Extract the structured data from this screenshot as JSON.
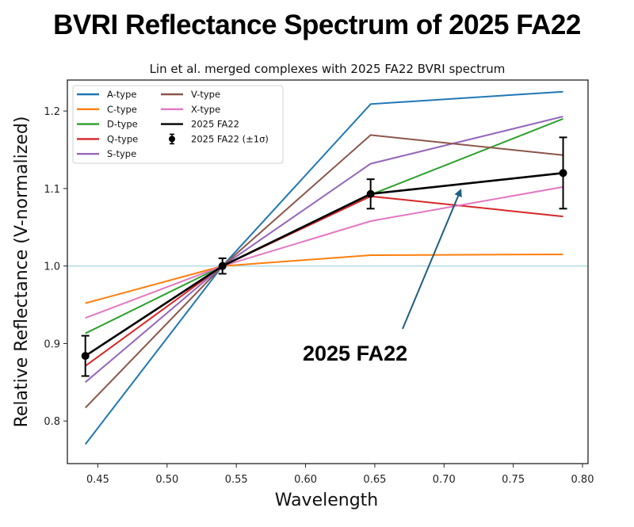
{
  "page_title": "BVRI Reflectance Spectrum of 2025 FA22",
  "chart_data": {
    "type": "line",
    "title": "Lin et al. merged complexes with 2025 FA22 BVRI spectrum",
    "xlabel": "Wavelength",
    "ylabel": "Relative Reflectance (V-normalized)",
    "xlim": [
      0.428,
      0.804
    ],
    "ylim": [
      0.745,
      1.24
    ],
    "xticks": [
      "0.45",
      "0.50",
      "0.55",
      "0.60",
      "0.65",
      "0.70",
      "0.75",
      "0.80"
    ],
    "xtick_values": [
      0.45,
      0.5,
      0.55,
      0.6,
      0.65,
      0.7,
      0.75,
      0.8
    ],
    "yticks": [
      "0.8",
      "0.9",
      "1.0",
      "1.1",
      "1.2"
    ],
    "ytick_values": [
      0.8,
      0.9,
      1.0,
      1.1,
      1.2
    ],
    "x": [
      0.441,
      0.54,
      0.647,
      0.786
    ],
    "reference_line": {
      "y": 1.0,
      "color": "#add8e6"
    },
    "grid": false,
    "legend_position": "top-left",
    "series": [
      {
        "name": "A-type",
        "color": "#1f77b4",
        "values": [
          0.77,
          1.0,
          1.209,
          1.225
        ]
      },
      {
        "name": "C-type",
        "color": "#ff7f0e",
        "values": [
          0.952,
          1.0,
          1.014,
          1.015
        ]
      },
      {
        "name": "D-type",
        "color": "#2ca02c",
        "values": [
          0.913,
          1.0,
          1.092,
          1.19
        ]
      },
      {
        "name": "Q-type",
        "color": "#d62728",
        "values": [
          0.871,
          1.0,
          1.09,
          1.064
        ]
      },
      {
        "name": "S-type",
        "color": "#9467bd",
        "values": [
          0.85,
          1.0,
          1.132,
          1.193
        ]
      },
      {
        "name": "V-type",
        "color": "#8c564b",
        "values": [
          0.817,
          1.0,
          1.169,
          1.143
        ]
      },
      {
        "name": "X-type",
        "color": "#e377c2",
        "values": [
          0.933,
          1.0,
          1.058,
          1.102
        ]
      },
      {
        "name": "2025 FA22",
        "color": "#000000",
        "values": [
          0.884,
          1.0,
          1.093,
          1.12
        ]
      }
    ],
    "errorbar_series": {
      "name": "2025 FA22 (±1σ)",
      "color": "#000000",
      "values": [
        0.884,
        1.0,
        1.093,
        1.12
      ],
      "errors": [
        0.026,
        0.01,
        0.019,
        0.046
      ]
    },
    "annotation": {
      "text": "2025 FA22",
      "color": "#1f5f7f",
      "points_to_x": 0.712,
      "points_to_y": 1.098
    }
  }
}
